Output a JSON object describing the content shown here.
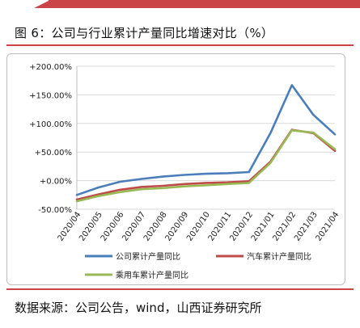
{
  "header": {
    "title": "图 6：公司与行业累计产量同比增速对比（%）"
  },
  "chart_data": {
    "type": "line",
    "title": "",
    "xlabel": "",
    "ylabel": "",
    "ylim": [
      -50,
      200
    ],
    "yticks": [
      -50,
      0,
      50,
      100,
      150,
      200
    ],
    "ytick_labels": [
      "-50.00%",
      "+0.00%",
      "+50.00%",
      "+100.00%",
      "+150.00%",
      "+200.00%"
    ],
    "grid": true,
    "legend_placement": "bottom",
    "categories": [
      "2020/04",
      "2020/05",
      "2020/06",
      "2020/07",
      "2020/08",
      "2020/09",
      "2020/10",
      "2020/11",
      "2020/12",
      "2021/01",
      "2021/02",
      "2021/03",
      "2021/04"
    ],
    "series": [
      {
        "name": "公司累计产量同比",
        "color": "#4a7ebb",
        "values": [
          -25,
          -12,
          -2,
          3,
          7,
          10,
          12,
          13,
          15,
          83,
          167,
          115,
          81
        ]
      },
      {
        "name": "汽车累计产量同比",
        "color": "#be4b48",
        "values": [
          -33,
          -24,
          -16,
          -11,
          -9,
          -6,
          -4,
          -3,
          -1,
          33,
          89,
          83,
          52
        ]
      },
      {
        "name": "乘用车累计产量同比",
        "color": "#98b954",
        "values": [
          -36,
          -27,
          -20,
          -15,
          -13,
          -10,
          -8,
          -6,
          -4,
          31,
          88,
          84,
          55
        ]
      }
    ]
  },
  "footer": {
    "source": "数据来源：公司公告，wind，山西证券研究所"
  }
}
